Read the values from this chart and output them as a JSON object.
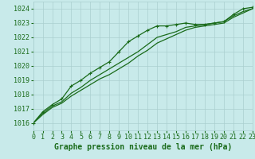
{
  "title": "Graphe pression niveau de la mer (hPa)",
  "bg_color": "#c8eaea",
  "grid_color": "#aacfcf",
  "line_color": "#1a6b1a",
  "marker_color": "#1a6b1a",
  "xlim": [
    0,
    23
  ],
  "ylim": [
    1015.5,
    1024.5
  ],
  "yticks": [
    1016,
    1017,
    1018,
    1019,
    1020,
    1021,
    1022,
    1023,
    1024
  ],
  "xticks": [
    0,
    1,
    2,
    3,
    4,
    5,
    6,
    7,
    8,
    9,
    10,
    11,
    12,
    13,
    14,
    15,
    16,
    17,
    18,
    19,
    20,
    21,
    22,
    23
  ],
  "series_main": [
    1016.0,
    1016.8,
    1017.3,
    1017.7,
    1018.6,
    1019.0,
    1019.5,
    1019.9,
    1020.3,
    1021.0,
    1021.7,
    1022.1,
    1022.5,
    1022.8,
    1022.8,
    1022.9,
    1023.0,
    1022.9,
    1022.9,
    1023.0,
    1023.1,
    1023.6,
    1024.0,
    1024.1
  ],
  "series_mid": [
    1016.0,
    1016.7,
    1017.2,
    1017.5,
    1018.1,
    1018.5,
    1019.0,
    1019.4,
    1019.8,
    1020.2,
    1020.6,
    1021.0,
    1021.5,
    1022.0,
    1022.2,
    1022.4,
    1022.7,
    1022.8,
    1022.9,
    1023.0,
    1023.1,
    1023.5,
    1023.8,
    1024.0
  ],
  "series_low": [
    1016.0,
    1016.6,
    1017.1,
    1017.4,
    1017.9,
    1018.3,
    1018.7,
    1019.1,
    1019.4,
    1019.8,
    1020.2,
    1020.7,
    1021.1,
    1021.6,
    1021.9,
    1022.2,
    1022.5,
    1022.7,
    1022.8,
    1022.9,
    1023.0,
    1023.4,
    1023.7,
    1024.0
  ],
  "marker": "+",
  "marker_size": 3.5,
  "line_width": 0.9,
  "xlabel_fontsize": 7,
  "tick_fontsize": 6,
  "xlabel_color": "#1a6b1a",
  "tick_color": "#1a6b1a",
  "font_family": "monospace"
}
